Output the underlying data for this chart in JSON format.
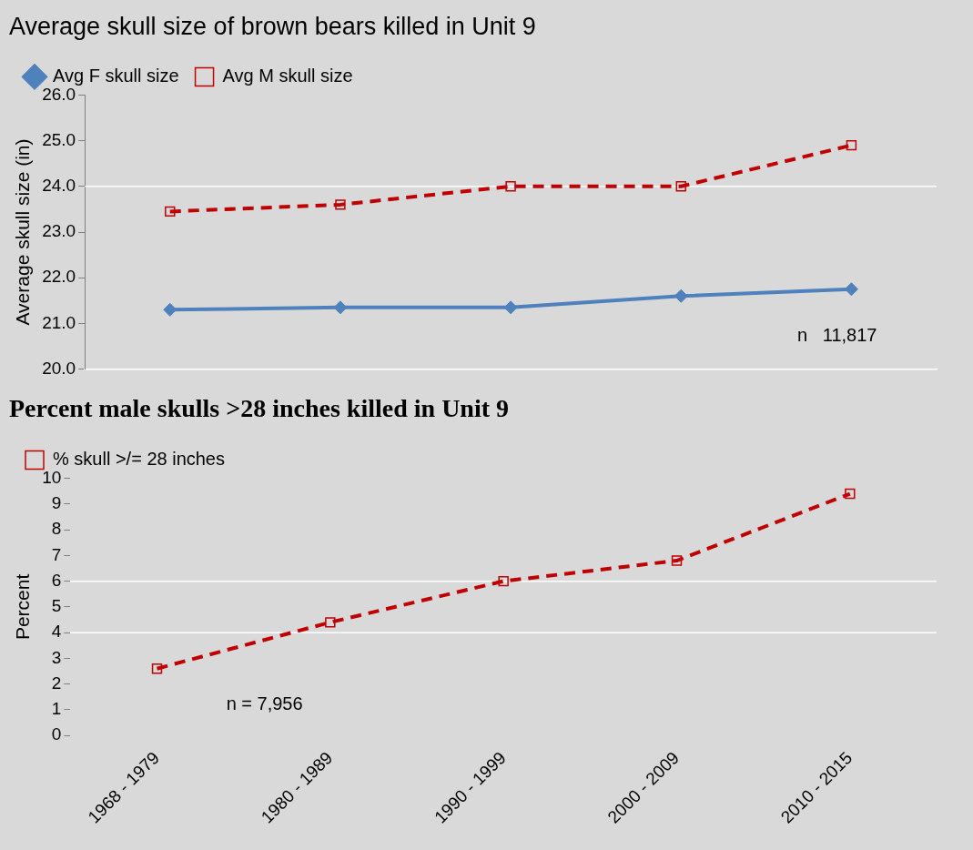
{
  "chart_data": [
    {
      "type": "line",
      "title": "Average skull size of brown bears killed in Unit 9",
      "ylabel": "Average skull size (in)",
      "categories": [
        null,
        null,
        null,
        null,
        null
      ],
      "series": [
        {
          "name": "Avg F skull size",
          "color": "#4f81bd",
          "values": [
            21.3,
            21.35,
            21.35,
            21.6,
            21.75
          ],
          "marker": "diamond",
          "line_style": "solid"
        },
        {
          "name": "Avg M skull size",
          "color": "#c00000",
          "values": [
            23.45,
            23.6,
            24.0,
            24.0,
            24.9
          ],
          "marker": "square",
          "line_style": "dashed"
        }
      ],
      "ylim": [
        20,
        26
      ],
      "yticks": [
        {
          "value": 20,
          "label": "20.0"
        },
        {
          "value": 21,
          "label": "21.0"
        },
        {
          "value": 22,
          "label": "22.0"
        },
        {
          "value": 23,
          "label": "23.0"
        },
        {
          "value": 24,
          "label": "24.0"
        },
        {
          "value": 25,
          "label": "25.0"
        },
        {
          "value": 26,
          "label": "26.0"
        }
      ],
      "ref_lines": [
        {
          "axis": "y",
          "value": 24,
          "color": "#ffffff"
        }
      ],
      "grid": false,
      "legend": "top left",
      "tick_labels": "y",
      "annotations": [
        "n   11,817"
      ]
    },
    {
      "type": "line",
      "title": "Percent male skulls >28 inches killed in Unit 9",
      "ylabel": "Percent",
      "categories": [
        "1968 - 1979",
        "1980 - 1989",
        "1990 - 1999",
        "2000 - 2009",
        "2010 - 2015"
      ],
      "series": [
        {
          "name": "% skull >/= 28 inches",
          "color": "#c00000",
          "values": [
            2.6,
            4.4,
            6.0,
            6.8,
            9.4
          ],
          "marker": "square",
          "line_style": "dashed"
        }
      ],
      "ylim": [
        0,
        10
      ],
      "yticks": [
        0,
        1,
        2,
        3,
        4,
        5,
        6,
        7,
        8,
        9,
        10
      ],
      "ref_lines": [
        {
          "axis": "y",
          "value": 4,
          "color": "#ffffff"
        },
        {
          "axis": "y",
          "value": 6,
          "color": "#ffffff"
        }
      ],
      "grid": false,
      "legend": "top left",
      "annotations": [
        "n = 7,956"
      ]
    }
  ]
}
